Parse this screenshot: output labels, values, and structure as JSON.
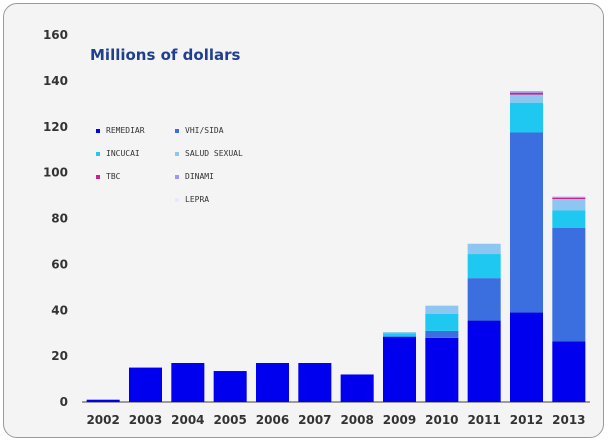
{
  "chart_data": {
    "type": "bar",
    "stacked": true,
    "title": "Millions of dollars",
    "xlabel": "",
    "ylabel": "",
    "ylim": [
      0,
      160
    ],
    "yticks": [
      0,
      20,
      40,
      60,
      80,
      100,
      120,
      140,
      160
    ],
    "categories": [
      "2002",
      "2003",
      "2004",
      "2005",
      "2006",
      "2007",
      "2008",
      "2009",
      "2010",
      "2011",
      "2012",
      "2013"
    ],
    "legend_position": "top-left",
    "grid": false,
    "series": [
      {
        "name": "REMEDIAR",
        "color": "#0000ee",
        "values": [
          1,
          15,
          17,
          13.5,
          17,
          17,
          12,
          28.5,
          28,
          35.5,
          39,
          26.5
        ]
      },
      {
        "name": "VHI/SIDA",
        "color": "#3b6fe0",
        "values": [
          0,
          0,
          0,
          0,
          0,
          0,
          0,
          0,
          3,
          18.5,
          78.5,
          49.5
        ]
      },
      {
        "name": "INCUCAI",
        "color": "#1ec8f0",
        "values": [
          0,
          0,
          0,
          0,
          0,
          0,
          0,
          1.5,
          7.5,
          10.5,
          13,
          7.5
        ]
      },
      {
        "name": "SALUD SEXUAL",
        "color": "#8ec6f2",
        "values": [
          0,
          0,
          0,
          0,
          0,
          0,
          0,
          0.5,
          3.5,
          4.5,
          3.5,
          5
        ]
      },
      {
        "name": "TBC",
        "color": "#d0208a",
        "values": [
          0,
          0,
          0,
          0,
          0,
          0,
          0,
          0,
          0,
          0,
          0.8,
          0.5
        ]
      },
      {
        "name": "DINAMI",
        "color": "#9a9af0",
        "values": [
          0,
          0,
          0,
          0,
          0,
          0,
          0,
          0,
          0,
          0,
          0.7,
          0.5
        ]
      },
      {
        "name": "LEPRA",
        "color": "#e8e8ff",
        "values": [
          0,
          0,
          0,
          0,
          0,
          0,
          0,
          0,
          0,
          0,
          0,
          0
        ]
      }
    ]
  }
}
